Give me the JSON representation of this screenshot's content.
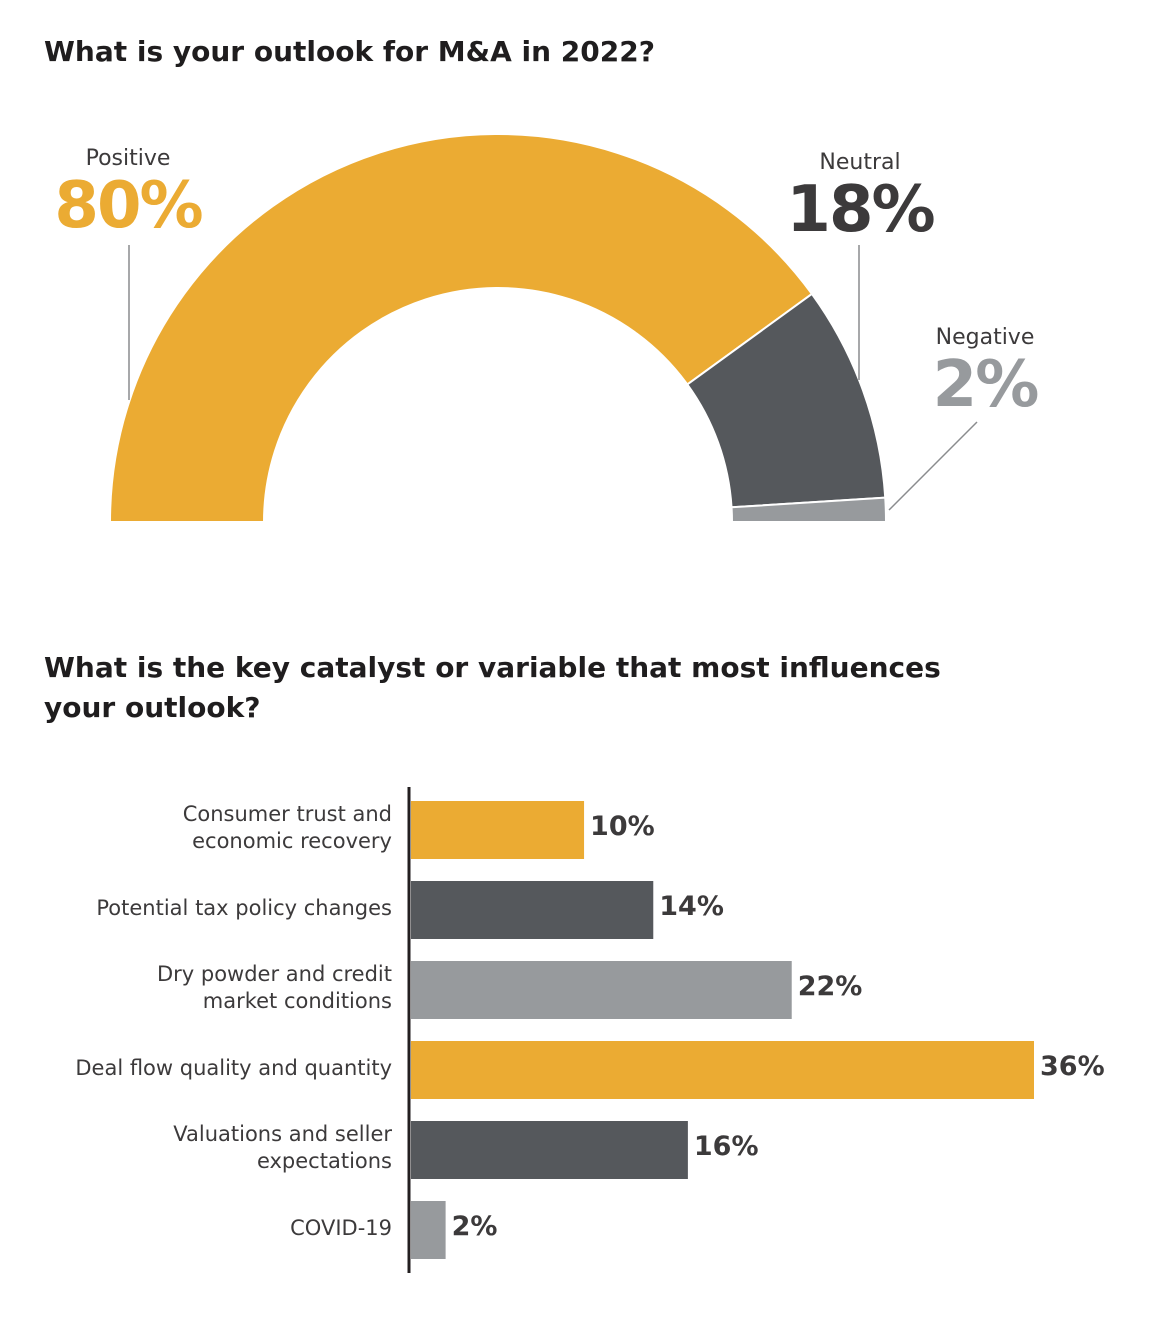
{
  "colors": {
    "gold": "#ebab33",
    "dark": "#55585c",
    "gray": "#979a9d",
    "text": "#3c3a3b"
  },
  "chart_data": [
    {
      "type": "pie",
      "title": "What is your outlook for M&A in 2022?",
      "series": [
        {
          "name": "Positive",
          "value": 80,
          "label": "80%",
          "color": "#ebab33"
        },
        {
          "name": "Neutral",
          "value": 18,
          "label": "18%",
          "color": "#55585c"
        },
        {
          "name": "Negative",
          "value": 2,
          "label": "2%",
          "color": "#979a9d"
        }
      ]
    },
    {
      "type": "bar",
      "title": "What is the key catalyst or variable that most influences your outlook?",
      "categories": [
        "Consumer trust and\neconomic recovery",
        "Potential tax policy changes",
        "Dry powder and credit\nmarket conditions",
        "Deal flow quality and quantity",
        "Valuations and seller\nexpectations",
        "COVID-19"
      ],
      "values": [
        10,
        14,
        22,
        36,
        16,
        2
      ],
      "labels": [
        "10%",
        "14%",
        "22%",
        "36%",
        "16%",
        "2%"
      ],
      "colors": [
        "#ebab33",
        "#55585c",
        "#979a9d",
        "#ebab33",
        "#55585c",
        "#979a9d"
      ],
      "xlim": [
        0,
        36
      ]
    }
  ]
}
